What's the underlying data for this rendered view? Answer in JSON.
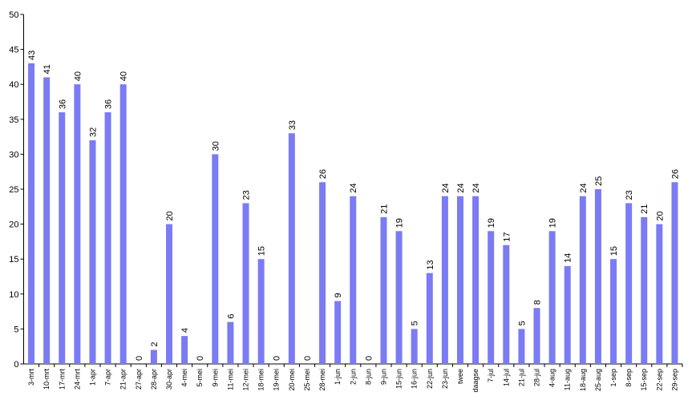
{
  "chart_data": {
    "type": "bar",
    "title": "",
    "xlabel": "",
    "ylabel": "",
    "ylim": [
      0,
      50
    ],
    "yticks": [
      0,
      5,
      10,
      15,
      20,
      25,
      30,
      35,
      40,
      45,
      50
    ],
    "grid": false,
    "legend": "none",
    "bar_color": "#7b7bf4",
    "categories": [
      "3-mrt",
      "10-mrt",
      "17-mrt",
      "24-mrt",
      "1-apr",
      "7-apr",
      "21-apr",
      "27-apr",
      "28-apr",
      "30-apr",
      "4-mei",
      "5-mei",
      "9-mei",
      "11-mei",
      "12-mei",
      "18-mei",
      "19-mei",
      "20-mei",
      "25-mei",
      "28-mei",
      "1-jun",
      "2-jun",
      "8-jun",
      "9-jun",
      "15-jun",
      "16-jun",
      "22-jun",
      "23-jun",
      "twee",
      "daagse",
      "7-jul",
      "14-jul",
      "21-jul",
      "28-jul",
      "4-aug",
      "11-aug",
      "18-aug",
      "25-aug",
      "1-sep",
      "8-sep",
      "15-sep",
      "22-sep",
      "29-sep"
    ],
    "values": [
      43,
      41,
      36,
      40,
      32,
      36,
      40,
      0,
      2,
      20,
      4,
      0,
      30,
      6,
      23,
      15,
      0,
      33,
      0,
      26,
      9,
      24,
      0,
      21,
      19,
      5,
      13,
      24,
      24,
      24,
      19,
      17,
      5,
      8,
      19,
      14,
      24,
      25,
      15,
      23,
      21,
      20,
      26
    ]
  }
}
